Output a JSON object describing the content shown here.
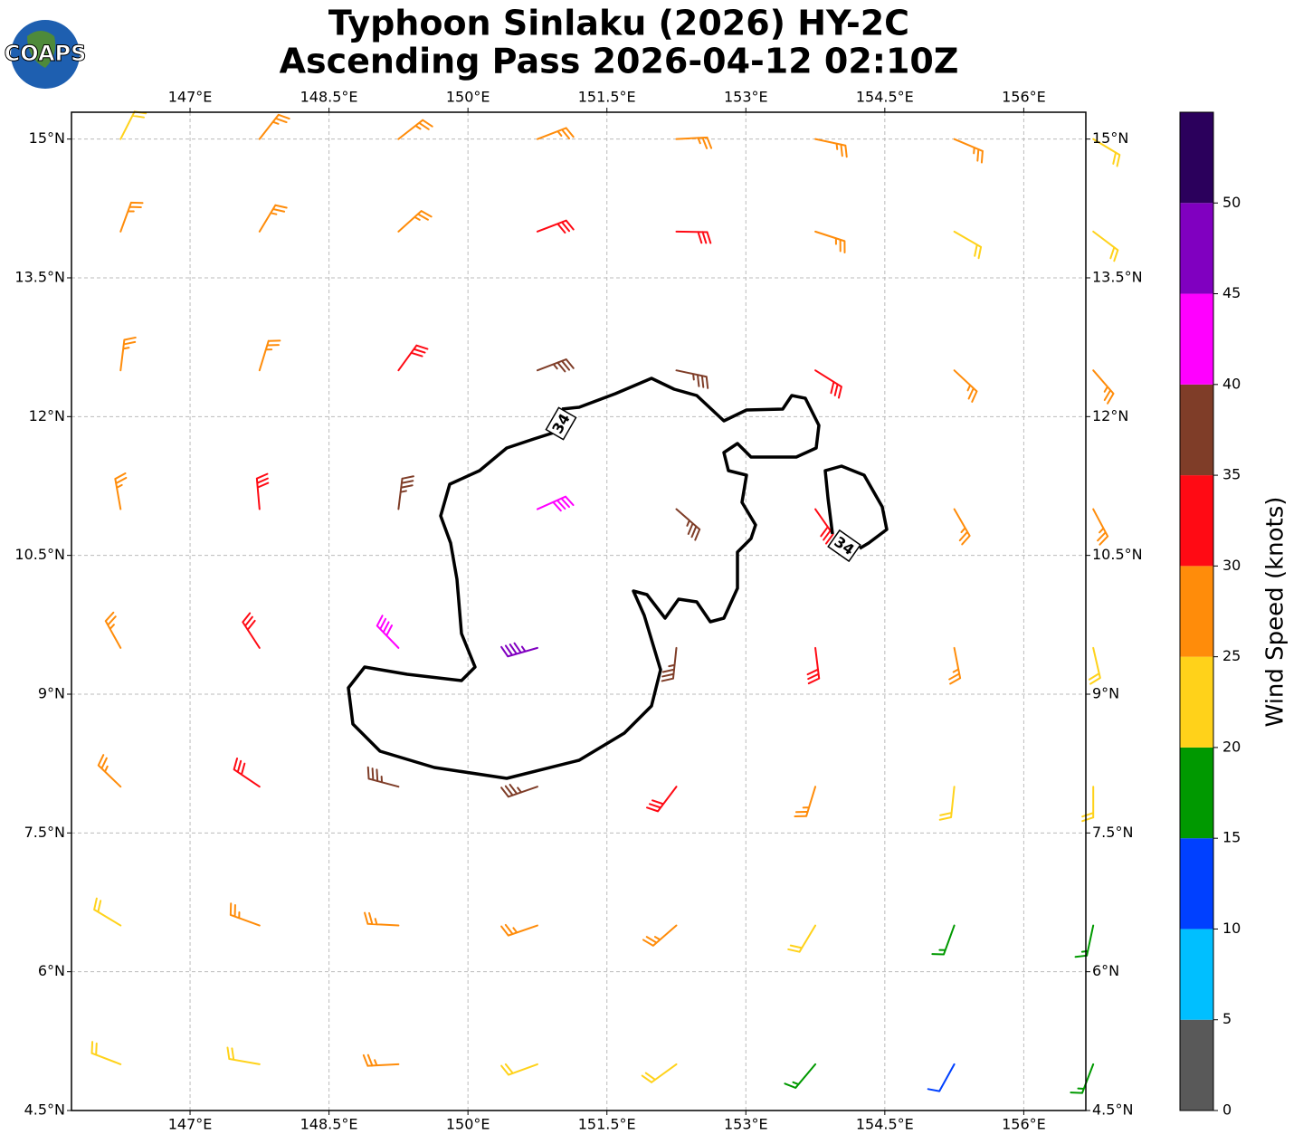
{
  "chart_data": {
    "type": "barb",
    "title": "Typhoon Sinlaku (2026) HY-2C",
    "subtitle": "Ascending Pass 2026-04-12 02:10Z",
    "logo_text": "COAPS",
    "xlim": [
      145.72,
      156.67
    ],
    "ylim": [
      4.5,
      15.29
    ],
    "xticks": [
      {
        "value": 147,
        "label": "147°E"
      },
      {
        "value": 148.5,
        "label": "148.5°E"
      },
      {
        "value": 150,
        "label": "150°E"
      },
      {
        "value": 151.5,
        "label": "151.5°E"
      },
      {
        "value": 153,
        "label": "153°E"
      },
      {
        "value": 154.5,
        "label": "154.5°E"
      },
      {
        "value": 156,
        "label": "156°E"
      }
    ],
    "yticks": [
      {
        "value": 4.5,
        "label": "4.5°N"
      },
      {
        "value": 6,
        "label": "6°N"
      },
      {
        "value": 7.5,
        "label": "7.5°N"
      },
      {
        "value": 9,
        "label": "9°N"
      },
      {
        "value": 10.5,
        "label": "10.5°N"
      },
      {
        "value": 12,
        "label": "12°N"
      },
      {
        "value": 13.5,
        "label": "13.5°N"
      },
      {
        "value": 15,
        "label": "15°N"
      }
    ],
    "grid": true,
    "contour_level": 34,
    "barbs": {
      "lons": [
        146.25,
        147.75,
        149.25,
        150.75,
        152.25,
        153.75,
        155.25,
        156.75
      ],
      "lats": [
        15,
        14,
        12.5,
        11,
        9.5,
        8,
        6.5,
        5
      ],
      "speed": [
        [
          24,
          27,
          28,
          28,
          28,
          27,
          25,
          24
        ],
        [
          26,
          28,
          29,
          30,
          30,
          27,
          24,
          24
        ],
        [
          27,
          29,
          33,
          37,
          36,
          33,
          27,
          25
        ],
        [
          27,
          31,
          38,
          44,
          39,
          33,
          28,
          25
        ],
        [
          27,
          32,
          42,
          46,
          38,
          32,
          27,
          24
        ],
        [
          25,
          30,
          38,
          38,
          33,
          28,
          24,
          20
        ],
        [
          24,
          26,
          28,
          27,
          25,
          22,
          17,
          17
        ],
        [
          22,
          24,
          25,
          24,
          22,
          18,
          12,
          17
        ]
      ],
      "direction": [
        [
          27,
          38,
          52,
          69,
          87,
          102,
          113,
          121
        ],
        [
          20,
          31,
          48,
          69,
          91,
          108,
          120,
          127
        ],
        [
          7,
          17,
          36,
          69,
          102,
          122,
          133,
          139
        ],
        [
          350,
          355,
          7,
          66,
          131,
          145,
          150,
          152
        ],
        [
          331,
          327,
          316,
          254,
          186,
          173,
          169,
          167
        ],
        [
          314,
          304,
          285,
          251,
          217,
          197,
          186,
          180
        ],
        [
          301,
          290,
          273,
          251,
          229,
          211,
          200,
          192
        ],
        [
          291,
          280,
          267,
          250,
          234,
          220,
          209,
          201
        ]
      ]
    },
    "colorbar": {
      "label": "Wind Speed (knots)",
      "lim": [
        0,
        55
      ],
      "step": 5,
      "colors": [
        "#595959",
        "#00bfff",
        "#0040ff",
        "#009900",
        "#ffd21a",
        "#ff8c0a",
        "#ff0a14",
        "#7f3d28",
        "#ff00ff",
        "#8000c0",
        "#2b005c"
      ],
      "ticks": [
        0,
        5,
        10,
        15,
        20,
        25,
        30,
        35,
        40,
        45,
        50
      ]
    }
  }
}
